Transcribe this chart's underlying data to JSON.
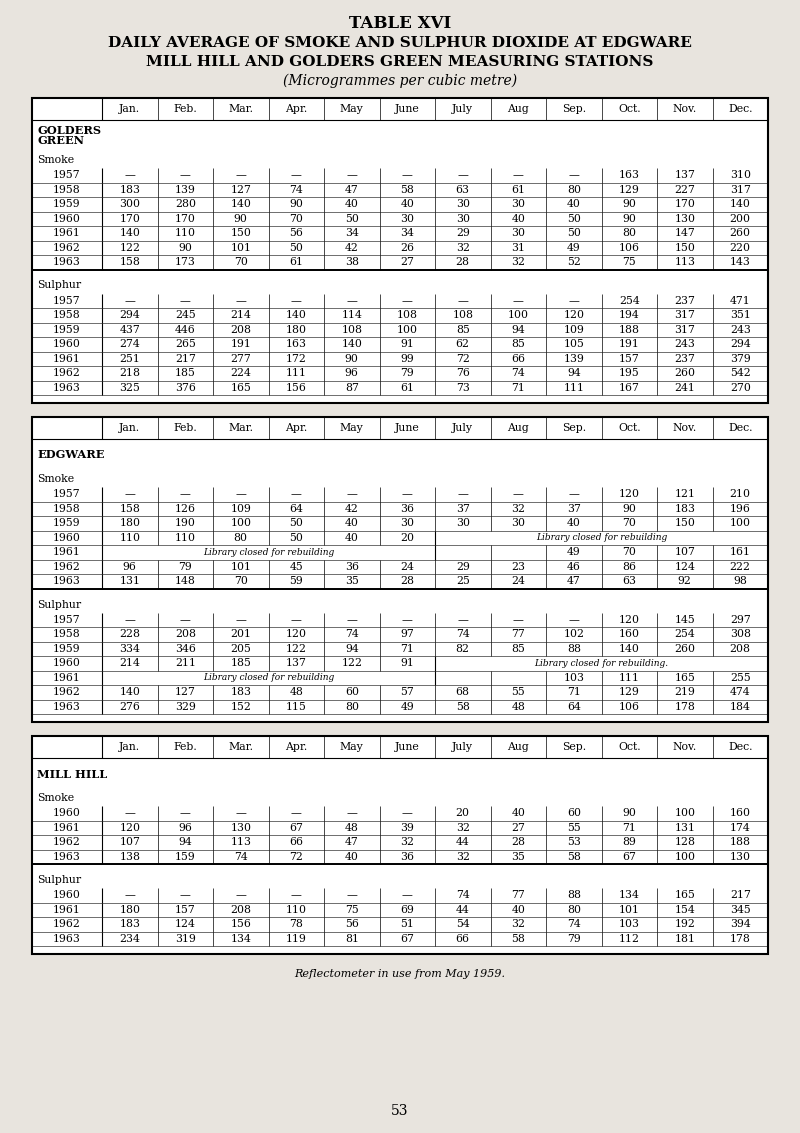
{
  "title_line1": "TABLE XVI",
  "title_line2": "DAILY AVERAGE OF SMOKE AND SULPHUR DIOXIDE AT EDGWARE",
  "title_line3": "MILL HILL AND GOLDERS GREEN MEASURING STATIONS",
  "title_line4": "(Microgrammes per cubic metre)",
  "footer": "Reflectometer in use from May 1959.",
  "page_number": "53",
  "bg_color": "#e8e4de",
  "months": [
    "Jan.",
    "Feb.",
    "Mar.",
    "Apr.",
    "May",
    "June",
    "July",
    "Aug",
    "Sep.",
    "Oct.",
    "Nov.",
    "Dec."
  ],
  "tables": [
    {
      "section": "GOLDERS\nGREEN",
      "has_header": true,
      "subsections": [
        {
          "name": "Smoke",
          "rows": [
            {
              "year": "1957",
              "vals": [
                "—",
                "—",
                "—",
                "—",
                "—",
                "—",
                "—",
                "—",
                "—",
                "163",
                "137",
                "310"
              ],
              "lib": null
            },
            {
              "year": "1958",
              "vals": [
                "183",
                "139",
                "127",
                "74",
                "47",
                "58",
                "63",
                "61",
                "80",
                "129",
                "227",
                "317"
              ],
              "lib": null
            },
            {
              "year": "1959",
              "vals": [
                "300",
                "280",
                "140",
                "90",
                "40",
                "40",
                "30",
                "30",
                "40",
                "90",
                "170",
                "140"
              ],
              "lib": null
            },
            {
              "year": "1960",
              "vals": [
                "170",
                "170",
                "90",
                "70",
                "50",
                "30",
                "30",
                "40",
                "50",
                "90",
                "130",
                "200"
              ],
              "lib": null
            },
            {
              "year": "1961",
              "vals": [
                "140",
                "110",
                "150",
                "56",
                "34",
                "34",
                "29",
                "30",
                "50",
                "80",
                "147",
                "260"
              ],
              "lib": null
            },
            {
              "year": "1962",
              "vals": [
                "122",
                "90",
                "101",
                "50",
                "42",
                "26",
                "32",
                "31",
                "49",
                "106",
                "150",
                "220"
              ],
              "lib": null
            },
            {
              "year": "1963",
              "vals": [
                "158",
                "173",
                "70",
                "61",
                "38",
                "27",
                "28",
                "32",
                "52",
                "75",
                "113",
                "143"
              ],
              "lib": null
            }
          ]
        },
        {
          "name": "Sulphur",
          "rows": [
            {
              "year": "1957",
              "vals": [
                "—",
                "—",
                "—",
                "—",
                "—",
                "—",
                "—",
                "—",
                "—",
                "254",
                "237",
                "471"
              ],
              "lib": null
            },
            {
              "year": "1958",
              "vals": [
                "294",
                "245",
                "214",
                "140",
                "114",
                "108",
                "108",
                "100",
                "120",
                "194",
                "317",
                "351"
              ],
              "lib": null
            },
            {
              "year": "1959",
              "vals": [
                "437",
                "446",
                "208",
                "180",
                "108",
                "100",
                "85",
                "94",
                "109",
                "188",
                "317",
                "243"
              ],
              "lib": null
            },
            {
              "year": "1960",
              "vals": [
                "274",
                "265",
                "191",
                "163",
                "140",
                "91",
                "62",
                "85",
                "105",
                "191",
                "243",
                "294"
              ],
              "lib": null
            },
            {
              "year": "1961",
              "vals": [
                "251",
                "217",
                "277",
                "172",
                "90",
                "99",
                "72",
                "66",
                "139",
                "157",
                "237",
                "379"
              ],
              "lib": null
            },
            {
              "year": "1962",
              "vals": [
                "218",
                "185",
                "224",
                "111",
                "96",
                "79",
                "76",
                "74",
                "94",
                "195",
                "260",
                "542"
              ],
              "lib": null
            },
            {
              "year": "1963",
              "vals": [
                "325",
                "376",
                "165",
                "156",
                "87",
                "61",
                "73",
                "71",
                "111",
                "167",
                "241",
                "270"
              ],
              "lib": null
            }
          ]
        }
      ]
    },
    {
      "section": "EDGWARE",
      "has_header": false,
      "subsections": [
        {
          "name": "Smoke",
          "rows": [
            {
              "year": "1957",
              "vals": [
                "—",
                "—",
                "—",
                "—",
                "—",
                "—",
                "—",
                "—",
                "—",
                "120",
                "121",
                "210"
              ],
              "lib": null
            },
            {
              "year": "1958",
              "vals": [
                "158",
                "126",
                "109",
                "64",
                "42",
                "36",
                "37",
                "32",
                "37",
                "90",
                "183",
                "196"
              ],
              "lib": null
            },
            {
              "year": "1959",
              "vals": [
                "180",
                "190",
                "100",
                "50",
                "40",
                "30",
                "30",
                "30",
                "40",
                "70",
                "150",
                "100"
              ],
              "lib": null
            },
            {
              "year": "1960",
              "vals": [
                "110",
                "110",
                "80",
                "50",
                "40",
                "20",
                "",
                "",
                "",
                "",
                "",
                ""
              ],
              "lib": {
                "start": 6,
                "end": 11,
                "text": "Library closed for rebuilding"
              }
            },
            {
              "year": "1961",
              "vals": [
                "",
                "",
                "",
                "",
                "",
                "",
                "",
                "",
                "49",
                "70",
                "107",
                "161"
              ],
              "lib": {
                "start": 0,
                "end": 5,
                "text": "Library closed for rebuilding"
              }
            },
            {
              "year": "1962",
              "vals": [
                "96",
                "79",
                "101",
                "45",
                "36",
                "24",
                "29",
                "23",
                "46",
                "86",
                "124",
                "222"
              ],
              "lib": null
            },
            {
              "year": "1963",
              "vals": [
                "131",
                "148",
                "70",
                "59",
                "35",
                "28",
                "25",
                "24",
                "47",
                "63",
                "92",
                "98"
              ],
              "lib": null
            }
          ]
        },
        {
          "name": "Sulphur",
          "rows": [
            {
              "year": "1957",
              "vals": [
                "—",
                "—",
                "—",
                "—",
                "—",
                "—",
                "—",
                "—",
                "—",
                "120",
                "145",
                "297"
              ],
              "lib": null
            },
            {
              "year": "1958",
              "vals": [
                "228",
                "208",
                "201",
                "120",
                "74",
                "97",
                "74",
                "77",
                "102",
                "160",
                "254",
                "308"
              ],
              "lib": null
            },
            {
              "year": "1959",
              "vals": [
                "334",
                "346",
                "205",
                "122",
                "94",
                "71",
                "82",
                "85",
                "88",
                "140",
                "260",
                "208"
              ],
              "lib": null
            },
            {
              "year": "1960",
              "vals": [
                "214",
                "211",
                "185",
                "137",
                "122",
                "91",
                "",
                "",
                "",
                "",
                "",
                ""
              ],
              "lib": {
                "start": 6,
                "end": 11,
                "text": "Library closed for rebuilding."
              }
            },
            {
              "year": "1961",
              "vals": [
                "",
                "",
                "",
                "",
                "",
                "",
                "",
                "",
                "103",
                "111",
                "165",
                "255"
              ],
              "lib": {
                "start": 0,
                "end": 5,
                "text": "Library closed for rebuilding"
              }
            },
            {
              "year": "1962",
              "vals": [
                "140",
                "127",
                "183",
                "48",
                "60",
                "57",
                "68",
                "55",
                "71",
                "129",
                "219",
                "474"
              ],
              "lib": null
            },
            {
              "year": "1963",
              "vals": [
                "276",
                "329",
                "152",
                "115",
                "80",
                "49",
                "58",
                "48",
                "64",
                "106",
                "178",
                "184"
              ],
              "lib": null
            }
          ]
        }
      ]
    },
    {
      "section": "MILL HILL",
      "has_header": false,
      "subsections": [
        {
          "name": "Smoke",
          "rows": [
            {
              "year": "1960",
              "vals": [
                "—",
                "—",
                "—",
                "—",
                "—",
                "—",
                "20",
                "40",
                "60",
                "90",
                "100",
                "160"
              ],
              "lib": null
            },
            {
              "year": "1961",
              "vals": [
                "120",
                "96",
                "130",
                "67",
                "48",
                "39",
                "32",
                "27",
                "55",
                "71",
                "131",
                "174"
              ],
              "lib": null
            },
            {
              "year": "1962",
              "vals": [
                "107",
                "94",
                "113",
                "66",
                "47",
                "32",
                "44",
                "28",
                "53",
                "89",
                "128",
                "188"
              ],
              "lib": null
            },
            {
              "year": "1963",
              "vals": [
                "138",
                "159",
                "74",
                "72",
                "40",
                "36",
                "32",
                "35",
                "58",
                "67",
                "100",
                "130"
              ],
              "lib": null
            }
          ]
        },
        {
          "name": "Sulphur",
          "rows": [
            {
              "year": "1960",
              "vals": [
                "—",
                "—",
                "—",
                "—",
                "—",
                "—",
                "74",
                "77",
                "88",
                "134",
                "165",
                "217"
              ],
              "lib": null
            },
            {
              "year": "1961",
              "vals": [
                "180",
                "157",
                "208",
                "110",
                "75",
                "69",
                "44",
                "40",
                "80",
                "101",
                "154",
                "345"
              ],
              "lib": null
            },
            {
              "year": "1962",
              "vals": [
                "183",
                "124",
                "156",
                "78",
                "56",
                "51",
                "54",
                "32",
                "74",
                "103",
                "192",
                "394"
              ],
              "lib": null
            },
            {
              "year": "1963",
              "vals": [
                "234",
                "319",
                "134",
                "119",
                "81",
                "67",
                "66",
                "58",
                "79",
                "112",
                "181",
                "178"
              ],
              "lib": null
            }
          ]
        }
      ]
    }
  ]
}
